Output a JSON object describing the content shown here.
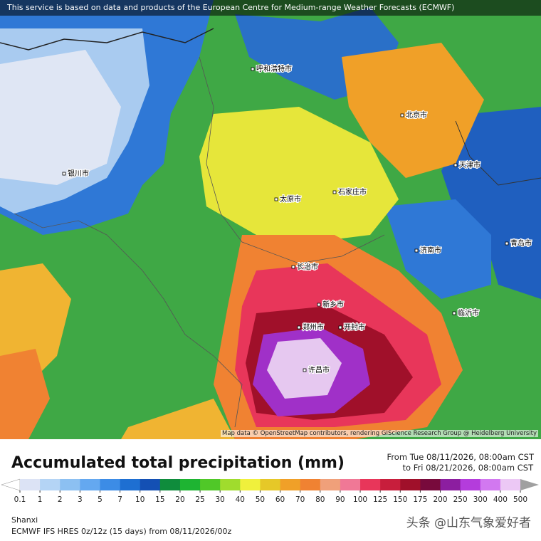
{
  "banner": "This service is based on data and products of the European Centre for Medium-range Weather Forecasts (ECMWF)",
  "map_attribution": "Map data © OpenStreetMap contributors, rendering GIScience Research Group @ Heidelberg University",
  "title": "Accumulated total precipitation (mm)",
  "date_from": "From Tue 08/11/2026, 08:00am CST",
  "date_to": "to Fri 08/21/2026, 08:00am CST",
  "legend": {
    "ticks": [
      0.1,
      1,
      2,
      3,
      5,
      7,
      10,
      15,
      20,
      25,
      30,
      40,
      50,
      60,
      70,
      80,
      90,
      100,
      125,
      150,
      175,
      200,
      250,
      300,
      400,
      500
    ],
    "colors": [
      "#ffffff",
      "#dce3f5",
      "#b4d4f5",
      "#8cc0f2",
      "#64a8f0",
      "#3c8ce6",
      "#1e6fd2",
      "#1450b4",
      "#0f8c3c",
      "#1eb432",
      "#50c828",
      "#a0dc2d",
      "#f0f03c",
      "#e6c828",
      "#f0a028",
      "#f08232",
      "#f0a07a",
      "#f07896",
      "#e8365a",
      "#c81e3c",
      "#a0102a",
      "#780a3c",
      "#8c1ea0",
      "#b43cdc",
      "#d278f0",
      "#ecc8f5",
      "#f5e6f5",
      "#a0a0a0"
    ]
  },
  "cities": [
    "北京市",
    "天津市",
    "石家庄市",
    "太原市",
    "郑州市",
    "开封市",
    "济南市",
    "呼和浩特市",
    "银川市",
    "长治市",
    "新乡市",
    "许昌市",
    "青岛市",
    "临沂市"
  ],
  "region": "Shanxi",
  "model": "ECMWF IFS HRES 0z/12z (15 days) from  08/11/2026/00z",
  "watermark": "头条 @山东气象爱好者"
}
